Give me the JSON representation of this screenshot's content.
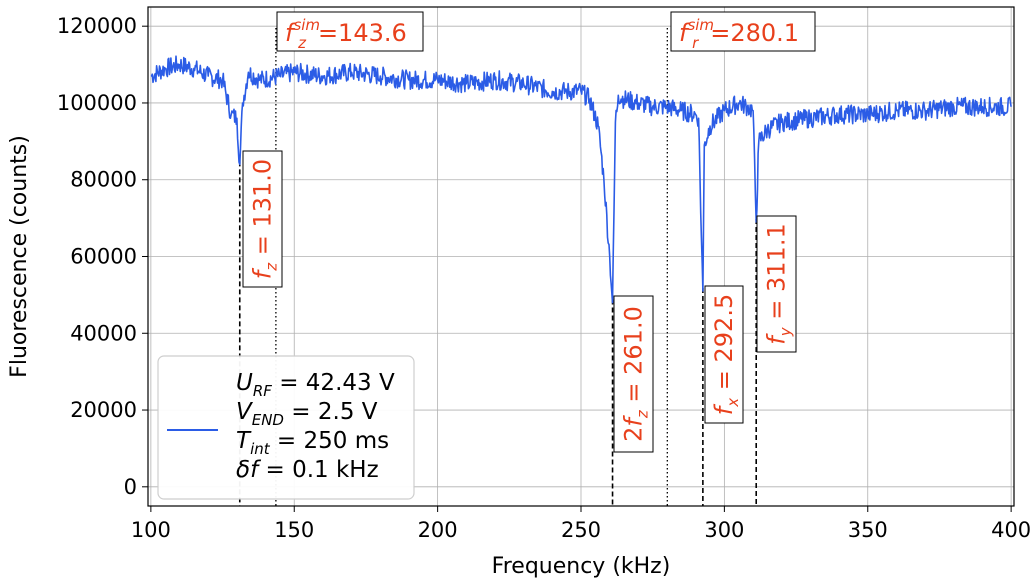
{
  "chart_data": {
    "type": "line",
    "xlabel": "Frequency (kHz)",
    "ylabel": "Fluorescence (counts)",
    "xlim": [
      99,
      401
    ],
    "ylim": [
      -5000,
      125000
    ],
    "x_ticks": [
      "100",
      "150",
      "200",
      "250",
      "300",
      "350",
      "400"
    ],
    "y_ticks": [
      "0",
      "20000",
      "40000",
      "60000",
      "80000",
      "100000",
      "120000"
    ],
    "grid": true,
    "legend_position": "lower-left",
    "line_color": "#2b5ce6",
    "annotation_color": "#e8401c",
    "legend": {
      "line1": {
        "base": "U",
        "sub": "RF",
        "rest": " = 42.43 V"
      },
      "line2": {
        "base": "V",
        "sub": "END",
        "rest": " = 2.5 V"
      },
      "line3": {
        "base": "T",
        "sub": "int",
        "rest": " = 250 ms"
      },
      "line4": {
        "base": "δf",
        "sub": "",
        "rest": " = 0.1 kHz"
      }
    },
    "sim_lines": [
      {
        "x": 143.6,
        "label": {
          "base": "f",
          "sub": "z",
          "sup": "sim",
          "rest": "=143.6"
        }
      },
      {
        "x": 280.1,
        "label": {
          "base": "f",
          "sub": "r",
          "sup": "sim",
          "rest": "=280.1"
        }
      }
    ],
    "resonances": [
      {
        "x": 131.0,
        "depth_to": 84000,
        "label": {
          "pre": "",
          "base": "f",
          "sub": "z",
          "rest": " = 131.0"
        }
      },
      {
        "x": 261.0,
        "depth_to": 48000,
        "label": {
          "pre": "2",
          "base": "f",
          "sub": "z",
          "rest": " = 261.0"
        }
      },
      {
        "x": 292.5,
        "depth_to": 51000,
        "label": {
          "pre": "",
          "base": "f",
          "sub": "x",
          "rest": " = 292.5"
        }
      },
      {
        "x": 311.1,
        "depth_to": 69000,
        "label": {
          "pre": "",
          "base": "f",
          "sub": "y",
          "rest": " = 311.1"
        }
      }
    ],
    "series": [
      {
        "x": [
          100,
          105,
          110,
          115,
          120,
          125,
          128,
          130,
          131,
          132,
          134,
          138,
          145,
          150,
          160,
          170,
          180,
          190,
          200,
          210,
          220,
          230,
          240,
          245,
          250,
          253,
          256,
          258,
          260,
          261,
          262,
          263,
          265,
          270,
          275,
          280,
          285,
          290,
          291,
          292,
          292.5,
          293,
          295,
          300,
          305,
          308,
          310,
          311.1,
          312,
          315,
          320,
          330,
          340,
          350,
          360,
          370,
          380,
          390,
          400
        ],
        "values": [
          107000,
          109000,
          110000,
          109000,
          107000,
          106000,
          97000,
          96000,
          84000,
          100000,
          108000,
          106000,
          107000,
          108000,
          107000,
          108000,
          107000,
          106000,
          106000,
          105000,
          106000,
          105000,
          103000,
          103000,
          103000,
          101000,
          94000,
          80000,
          60000,
          48000,
          95000,
          102000,
          101000,
          100000,
          99000,
          99000,
          98000,
          97000,
          96000,
          65000,
          51000,
          89000,
          94000,
          98000,
          100000,
          99000,
          98000,
          69000,
          90000,
          93000,
          95000,
          96000,
          97000,
          97000,
          98000,
          98000,
          99000,
          99000,
          99000
        ]
      }
    ]
  }
}
